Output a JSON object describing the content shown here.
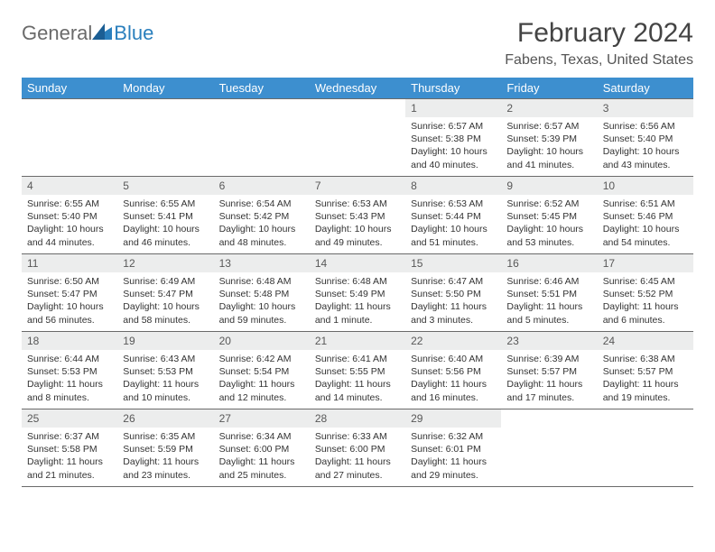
{
  "brand": {
    "part1": "General",
    "part2": "Blue"
  },
  "title": "February 2024",
  "location": "Fabens, Texas, United States",
  "colors": {
    "header_bg": "#3d8fcf",
    "header_fg": "#ffffff",
    "daynum_bg": "#eceded",
    "border": "#6a6a6a",
    "logo_gray": "#6a6a6a",
    "logo_blue": "#2a7fbd"
  },
  "day_labels": [
    "Sunday",
    "Monday",
    "Tuesday",
    "Wednesday",
    "Thursday",
    "Friday",
    "Saturday"
  ],
  "weeks": [
    [
      {
        "n": "",
        "sr": "",
        "ss": "",
        "dl": ""
      },
      {
        "n": "",
        "sr": "",
        "ss": "",
        "dl": ""
      },
      {
        "n": "",
        "sr": "",
        "ss": "",
        "dl": ""
      },
      {
        "n": "",
        "sr": "",
        "ss": "",
        "dl": ""
      },
      {
        "n": "1",
        "sr": "Sunrise: 6:57 AM",
        "ss": "Sunset: 5:38 PM",
        "dl": "Daylight: 10 hours and 40 minutes."
      },
      {
        "n": "2",
        "sr": "Sunrise: 6:57 AM",
        "ss": "Sunset: 5:39 PM",
        "dl": "Daylight: 10 hours and 41 minutes."
      },
      {
        "n": "3",
        "sr": "Sunrise: 6:56 AM",
        "ss": "Sunset: 5:40 PM",
        "dl": "Daylight: 10 hours and 43 minutes."
      }
    ],
    [
      {
        "n": "4",
        "sr": "Sunrise: 6:55 AM",
        "ss": "Sunset: 5:40 PM",
        "dl": "Daylight: 10 hours and 44 minutes."
      },
      {
        "n": "5",
        "sr": "Sunrise: 6:55 AM",
        "ss": "Sunset: 5:41 PM",
        "dl": "Daylight: 10 hours and 46 minutes."
      },
      {
        "n": "6",
        "sr": "Sunrise: 6:54 AM",
        "ss": "Sunset: 5:42 PM",
        "dl": "Daylight: 10 hours and 48 minutes."
      },
      {
        "n": "7",
        "sr": "Sunrise: 6:53 AM",
        "ss": "Sunset: 5:43 PM",
        "dl": "Daylight: 10 hours and 49 minutes."
      },
      {
        "n": "8",
        "sr": "Sunrise: 6:53 AM",
        "ss": "Sunset: 5:44 PM",
        "dl": "Daylight: 10 hours and 51 minutes."
      },
      {
        "n": "9",
        "sr": "Sunrise: 6:52 AM",
        "ss": "Sunset: 5:45 PM",
        "dl": "Daylight: 10 hours and 53 minutes."
      },
      {
        "n": "10",
        "sr": "Sunrise: 6:51 AM",
        "ss": "Sunset: 5:46 PM",
        "dl": "Daylight: 10 hours and 54 minutes."
      }
    ],
    [
      {
        "n": "11",
        "sr": "Sunrise: 6:50 AM",
        "ss": "Sunset: 5:47 PM",
        "dl": "Daylight: 10 hours and 56 minutes."
      },
      {
        "n": "12",
        "sr": "Sunrise: 6:49 AM",
        "ss": "Sunset: 5:47 PM",
        "dl": "Daylight: 10 hours and 58 minutes."
      },
      {
        "n": "13",
        "sr": "Sunrise: 6:48 AM",
        "ss": "Sunset: 5:48 PM",
        "dl": "Daylight: 10 hours and 59 minutes."
      },
      {
        "n": "14",
        "sr": "Sunrise: 6:48 AM",
        "ss": "Sunset: 5:49 PM",
        "dl": "Daylight: 11 hours and 1 minute."
      },
      {
        "n": "15",
        "sr": "Sunrise: 6:47 AM",
        "ss": "Sunset: 5:50 PM",
        "dl": "Daylight: 11 hours and 3 minutes."
      },
      {
        "n": "16",
        "sr": "Sunrise: 6:46 AM",
        "ss": "Sunset: 5:51 PM",
        "dl": "Daylight: 11 hours and 5 minutes."
      },
      {
        "n": "17",
        "sr": "Sunrise: 6:45 AM",
        "ss": "Sunset: 5:52 PM",
        "dl": "Daylight: 11 hours and 6 minutes."
      }
    ],
    [
      {
        "n": "18",
        "sr": "Sunrise: 6:44 AM",
        "ss": "Sunset: 5:53 PM",
        "dl": "Daylight: 11 hours and 8 minutes."
      },
      {
        "n": "19",
        "sr": "Sunrise: 6:43 AM",
        "ss": "Sunset: 5:53 PM",
        "dl": "Daylight: 11 hours and 10 minutes."
      },
      {
        "n": "20",
        "sr": "Sunrise: 6:42 AM",
        "ss": "Sunset: 5:54 PM",
        "dl": "Daylight: 11 hours and 12 minutes."
      },
      {
        "n": "21",
        "sr": "Sunrise: 6:41 AM",
        "ss": "Sunset: 5:55 PM",
        "dl": "Daylight: 11 hours and 14 minutes."
      },
      {
        "n": "22",
        "sr": "Sunrise: 6:40 AM",
        "ss": "Sunset: 5:56 PM",
        "dl": "Daylight: 11 hours and 16 minutes."
      },
      {
        "n": "23",
        "sr": "Sunrise: 6:39 AM",
        "ss": "Sunset: 5:57 PM",
        "dl": "Daylight: 11 hours and 17 minutes."
      },
      {
        "n": "24",
        "sr": "Sunrise: 6:38 AM",
        "ss": "Sunset: 5:57 PM",
        "dl": "Daylight: 11 hours and 19 minutes."
      }
    ],
    [
      {
        "n": "25",
        "sr": "Sunrise: 6:37 AM",
        "ss": "Sunset: 5:58 PM",
        "dl": "Daylight: 11 hours and 21 minutes."
      },
      {
        "n": "26",
        "sr": "Sunrise: 6:35 AM",
        "ss": "Sunset: 5:59 PM",
        "dl": "Daylight: 11 hours and 23 minutes."
      },
      {
        "n": "27",
        "sr": "Sunrise: 6:34 AM",
        "ss": "Sunset: 6:00 PM",
        "dl": "Daylight: 11 hours and 25 minutes."
      },
      {
        "n": "28",
        "sr": "Sunrise: 6:33 AM",
        "ss": "Sunset: 6:00 PM",
        "dl": "Daylight: 11 hours and 27 minutes."
      },
      {
        "n": "29",
        "sr": "Sunrise: 6:32 AM",
        "ss": "Sunset: 6:01 PM",
        "dl": "Daylight: 11 hours and 29 minutes."
      },
      {
        "n": "",
        "sr": "",
        "ss": "",
        "dl": ""
      },
      {
        "n": "",
        "sr": "",
        "ss": "",
        "dl": ""
      }
    ]
  ]
}
